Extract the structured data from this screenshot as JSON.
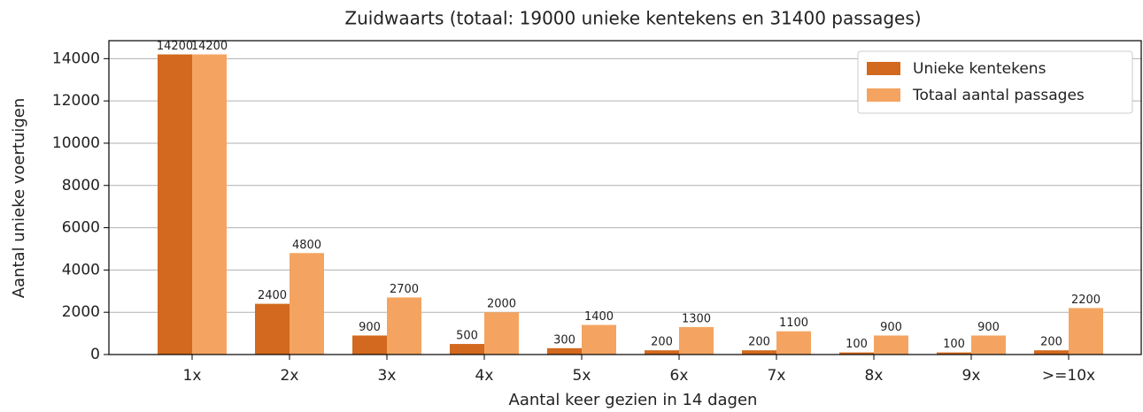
{
  "chart_data": {
    "type": "bar",
    "title": "Zuidwaarts (totaal: 19000 unieke kentekens en 31400 passages)",
    "x_label": "Aantal keer gezien in 14 dagen",
    "y_label": "Aantal unieke voertuigen",
    "categories": [
      "1x",
      "2x",
      "3x",
      "4x",
      "5x",
      "6x",
      "7x",
      "8x",
      "9x",
      ">=10x"
    ],
    "series": [
      {
        "name": "Unieke kentekens",
        "color": "#d2691e",
        "values": [
          14200,
          2400,
          900,
          500,
          300,
          200,
          200,
          100,
          100,
          200
        ]
      },
      {
        "name": "Totaal aantal passages",
        "color": "#f4a460",
        "values": [
          14200,
          4800,
          2700,
          2000,
          1400,
          1300,
          1100,
          900,
          900,
          2200
        ]
      }
    ],
    "ylim": [
      0,
      14850
    ],
    "yticks": [
      0,
      2000,
      4000,
      6000,
      8000,
      10000,
      12000,
      14000
    ],
    "grid": true,
    "legend": "upper right"
  }
}
